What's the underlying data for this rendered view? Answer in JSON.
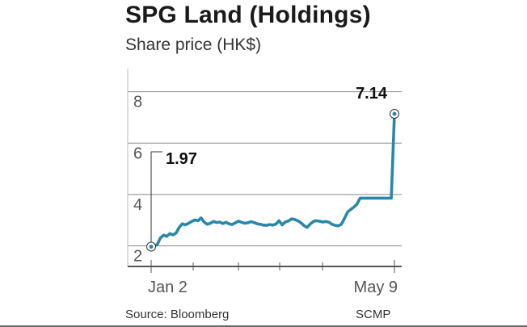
{
  "chart_data": {
    "type": "line",
    "title": "SPG Land (Holdings)",
    "subtitle": "Share price (HK$)",
    "source": "Source: Bloomberg",
    "credit": "SCMP",
    "ylim": [
      1.2,
      8.9
    ],
    "yticks": [
      2,
      4,
      6,
      8
    ],
    "grid": true,
    "color": "#2a87a8",
    "x_tick_labels": [
      "Jan 2",
      "May 9"
    ],
    "annotations": [
      {
        "label": "1.97",
        "point": "first"
      },
      {
        "label": "7.14",
        "point": "last"
      }
    ],
    "series": [
      {
        "values": [
          1.97,
          1.99,
          2.06,
          2.32,
          2.42,
          2.37,
          2.48,
          2.43,
          2.5,
          2.72,
          2.86,
          2.82,
          2.88,
          2.95,
          3.01,
          2.98,
          3.09,
          2.93,
          2.84,
          2.88,
          2.95,
          2.91,
          2.93,
          2.87,
          2.92,
          2.86,
          2.83,
          2.9,
          2.96,
          2.92,
          2.88,
          2.9,
          2.94,
          2.91,
          2.86,
          2.84,
          2.81,
          2.8,
          2.83,
          2.81,
          2.85,
          2.98,
          2.82,
          2.93,
          2.97,
          3.05,
          3.03,
          2.98,
          2.9,
          2.79,
          2.72,
          2.85,
          2.95,
          2.98,
          2.96,
          2.93,
          2.95,
          2.92,
          2.84,
          2.8,
          2.78,
          2.84,
          3.08,
          3.32,
          3.42,
          3.51,
          3.63,
          3.86,
          3.86,
          3.86,
          3.86,
          3.86,
          3.86,
          3.86,
          3.86,
          3.86,
          3.86,
          3.86,
          7.14
        ]
      }
    ]
  }
}
